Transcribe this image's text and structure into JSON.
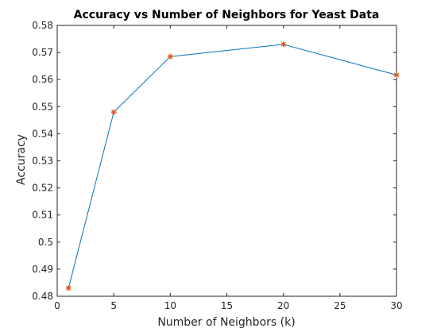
{
  "chart_data": {
    "type": "line",
    "title": "Accuracy vs Number of Neighbors for Yeast Data",
    "xlabel": "Number of Neighbors (k)",
    "ylabel": "Accuracy",
    "x": [
      1,
      5,
      10,
      20,
      30
    ],
    "series": [
      {
        "values": [
          0.483,
          0.548,
          0.5685,
          0.573,
          0.5617
        ],
        "line_color": "#0072BD",
        "marker_color": "#D95319",
        "marker": "asterisk"
      }
    ],
    "xlim": [
      0,
      30
    ],
    "ylim": [
      0.48,
      0.58
    ],
    "xticks": [
      0,
      5,
      10,
      15,
      20,
      25,
      30
    ],
    "yticks": [
      0.48,
      0.49,
      0.5,
      0.51,
      0.52,
      0.53,
      0.54,
      0.55,
      0.56,
      0.57,
      0.58
    ],
    "xtick_labels": [
      "0",
      "5",
      "10",
      "15",
      "20",
      "25",
      "30"
    ],
    "ytick_labels": [
      "0.48",
      "0.49",
      "0.5",
      "0.51",
      "0.52",
      "0.53",
      "0.54",
      "0.55",
      "0.56",
      "0.57",
      "0.58"
    ],
    "grid": false,
    "box": true
  }
}
